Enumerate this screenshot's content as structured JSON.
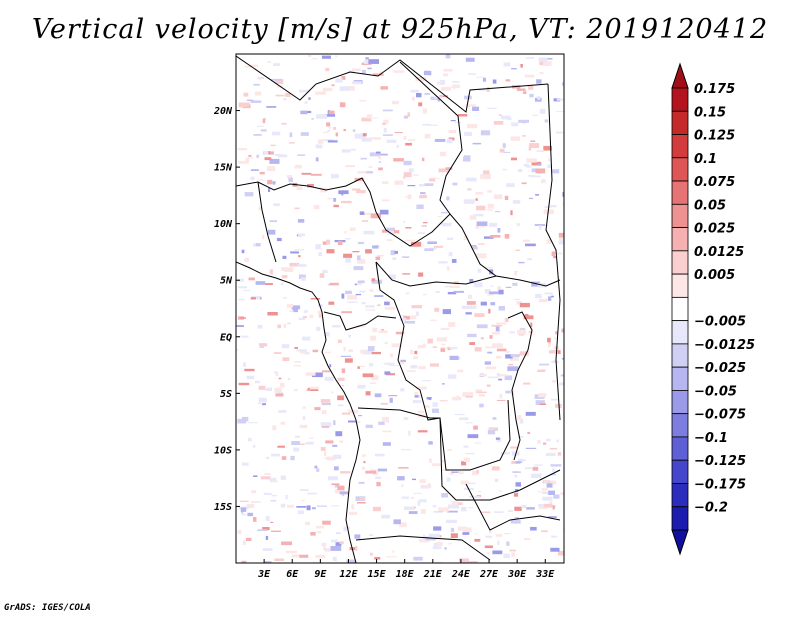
{
  "chart_data": {
    "type": "heatmap",
    "title": "Vertical velocity [m/s] at 925hPa, VT: 2019120412",
    "variable": "Vertical velocity",
    "units": "m/s",
    "level": "925hPa",
    "valid_time": "2019120412",
    "lon_range": [
      0,
      35
    ],
    "lat_range": [
      -20,
      25
    ],
    "x_ticks": [
      {
        "value": 3,
        "label": "3E"
      },
      {
        "value": 6,
        "label": "6E"
      },
      {
        "value": 9,
        "label": "9E"
      },
      {
        "value": 12,
        "label": "12E"
      },
      {
        "value": 15,
        "label": "15E"
      },
      {
        "value": 18,
        "label": "18E"
      },
      {
        "value": 21,
        "label": "21E"
      },
      {
        "value": 24,
        "label": "24E"
      },
      {
        "value": 27,
        "label": "27E"
      },
      {
        "value": 30,
        "label": "30E"
      },
      {
        "value": 33,
        "label": "33E"
      }
    ],
    "y_ticks": [
      {
        "value": 20,
        "label": "20N"
      },
      {
        "value": 15,
        "label": "15N"
      },
      {
        "value": 10,
        "label": "10N"
      },
      {
        "value": 5,
        "label": "5N"
      },
      {
        "value": 0,
        "label": "EQ"
      },
      {
        "value": -5,
        "label": "5S"
      },
      {
        "value": -10,
        "label": "10S"
      },
      {
        "value": -15,
        "label": "15S"
      }
    ],
    "colorbar": [
      {
        "label": "0.175",
        "color": "#b4141e"
      },
      {
        "label": "0.15",
        "color": "#c52a2a"
      },
      {
        "label": "0.125",
        "color": "#d23c3c"
      },
      {
        "label": "0.1",
        "color": "#df5656"
      },
      {
        "label": "0.075",
        "color": "#e67474"
      },
      {
        "label": "0.05",
        "color": "#ee9191"
      },
      {
        "label": "0.025",
        "color": "#f5b1b1"
      },
      {
        "label": "0.0125",
        "color": "#f9cfcf"
      },
      {
        "label": "0.005",
        "color": "#fce6e6"
      },
      {
        "label": "",
        "color": "#ffffff"
      },
      {
        "label": "−0.005",
        "color": "#e8e8fb"
      },
      {
        "label": "−0.0125",
        "color": "#d0d0f5"
      },
      {
        "label": "−0.025",
        "color": "#b6b6f0"
      },
      {
        "label": "−0.05",
        "color": "#9a9ae8"
      },
      {
        "label": "−0.075",
        "color": "#7d7de0"
      },
      {
        "label": "−0.1",
        "color": "#6060d6"
      },
      {
        "label": "−0.125",
        "color": "#4646cc"
      },
      {
        "label": "−0.175",
        "color": "#2c2cbd"
      },
      {
        "label": "−0.2",
        "color": "#1c1cae"
      }
    ],
    "colorbar_top_color": "#a00f18",
    "colorbar_bottom_color": "#1010a0"
  },
  "footer": {
    "credit": "GrADS: IGES/COLA"
  }
}
